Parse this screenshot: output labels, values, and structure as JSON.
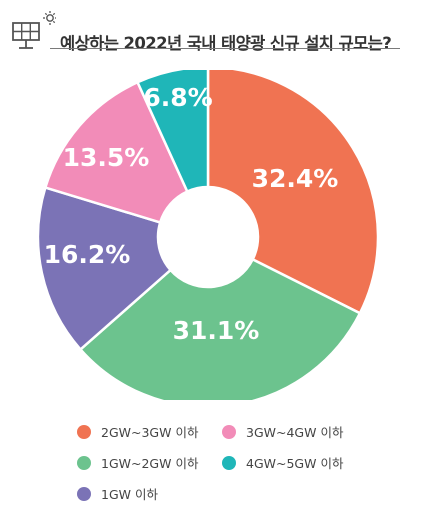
{
  "title": "예상하는 2022년 국내 태양광 신규 설치 규모는?",
  "icons": {
    "header": "solar-panel-icon"
  },
  "chart_data": {
    "type": "pie",
    "donut": true,
    "start_angle_deg": 0,
    "direction": "clockwise",
    "slices": [
      {
        "label": "2GW~3GW 이하",
        "value": 32.4,
        "display": "32.4%",
        "color": "#f07352"
      },
      {
        "label": "1GW~2GW 이하",
        "value": 31.1,
        "display": "31.1%",
        "color": "#6cc38e"
      },
      {
        "label": "1GW 이하",
        "value": 16.2,
        "display": "16.2%",
        "color": "#7b73b6"
      },
      {
        "label": "3GW~4GW 이하",
        "value": 13.5,
        "display": "13.5%",
        "color": "#f28cb8"
      },
      {
        "label": "4GW~5GW 이하",
        "value": 6.8,
        "display": "6.8%",
        "color": "#1fb6b8"
      }
    ],
    "legend": {
      "placement": "bottom",
      "rows": [
        [
          "2GW~3GW 이하",
          "3GW~4GW 이하"
        ],
        [
          "1GW~2GW 이하",
          "4GW~5GW 이하"
        ],
        [
          "1GW 이하"
        ]
      ]
    }
  }
}
